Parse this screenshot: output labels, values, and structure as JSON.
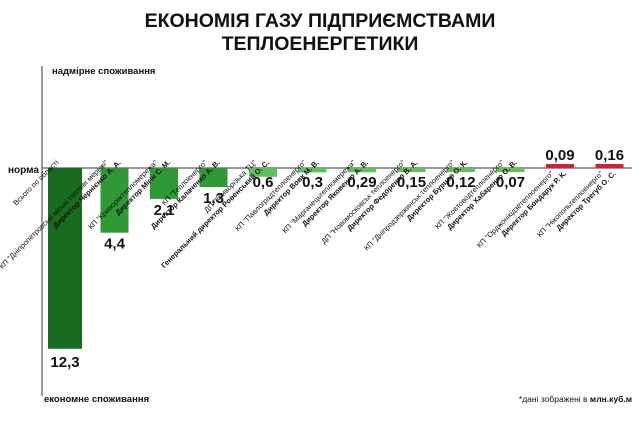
{
  "header": {
    "title_line1": "ЕКОНОМІЯ ГАЗУ ПІДПРИЄМСТВАМИ",
    "title_line2": "ТЕПЛОЕНЕРГЕТИКИ"
  },
  "labels": {
    "over": "надмірне споживання",
    "norm": "норма",
    "under": "економне споживання",
    "note_prefix": "*дані зображені в ",
    "note_unit": "млн.куб.м"
  },
  "colors": {
    "dark_green": "#196b1f",
    "mid_green": "#2f9a34",
    "light_green": "#5cc35c",
    "red": "#d0203a",
    "axis": "#333333"
  },
  "chart_data": {
    "type": "bar",
    "title": "ЕКОНОМІЯ ГАЗУ ПІДПРИЄМСТВАМИ ТЕПЛОЕНЕРГЕТИКИ",
    "baseline_label": "норма",
    "unit": "млн.куб.м",
    "categories": [
      {
        "name": "Всього по області",
        "director": "",
        "direction": "economy",
        "value": 12.3,
        "label": "12,3",
        "color": "#196b1f"
      },
      {
        "name": "КП \"Дніпропетровські міські теплові мережі\"",
        "director": "Директор Чернієнко А. А.",
        "direction": "economy",
        "value": 4.4,
        "label": "4,4",
        "color": "#2f9a34"
      },
      {
        "name": "КП \"Криворіжтепломережа\"",
        "director": "Директор Мігін С. М.",
        "direction": "economy",
        "value": 2.1,
        "label": "2,1",
        "color": "#2f9a34"
      },
      {
        "name": "КП \"Теплоенерго\"",
        "director": "Директор Калаченко А. В.",
        "direction": "economy",
        "value": 1.3,
        "label": "1,3",
        "color": "#2f9a34"
      },
      {
        "name": "ДП \"Криворізька ТЦ\"",
        "director": "Генеральний директор Ровенський О. С.",
        "direction": "economy",
        "value": 0.6,
        "label": "0,6",
        "color": "#5cc35c"
      },
      {
        "name": "КП \"Павлоградтеплоенерго\"",
        "director": "Директор Вовк М. В.",
        "direction": "economy",
        "value": 0.3,
        "label": "0,3",
        "color": "#5cc35c"
      },
      {
        "name": "КП \"Марганецьтепломережа\"",
        "director": "Директор Яковенко А. В.",
        "direction": "economy",
        "value": 0.29,
        "label": "0,29",
        "color": "#5cc35c"
      },
      {
        "name": "ДП \"Новомосковськ теплоенерго\"",
        "director": "Директор Федоренко В. А.",
        "direction": "economy",
        "value": 0.15,
        "label": "0,15",
        "color": "#5cc35c"
      },
      {
        "name": "КП \"Дніпродзержинськ теплоенерго\"",
        "director": "Директор Бурцев О. К.",
        "direction": "economy",
        "value": 0.12,
        "label": "0,12",
        "color": "#5cc35c"
      },
      {
        "name": "КП \"Жовтоводтеплоенерго\"",
        "director": "Директор Хабаренко О. В.",
        "direction": "economy",
        "value": 0.07,
        "label": "0,07",
        "color": "#5cc35c"
      },
      {
        "name": "КП \"Орджонікідзетеплоенерго\"",
        "director": "Директор Бондарук Р. К.",
        "direction": "overuse",
        "value": 0.09,
        "label": "0,09",
        "color": "#d0203a"
      },
      {
        "name": "КП \"Нікопольтеплоенерго\"",
        "director": "Директор Трегуб О. С.",
        "direction": "overuse",
        "value": 0.16,
        "label": "0,16",
        "color": "#d0203a"
      }
    ]
  }
}
